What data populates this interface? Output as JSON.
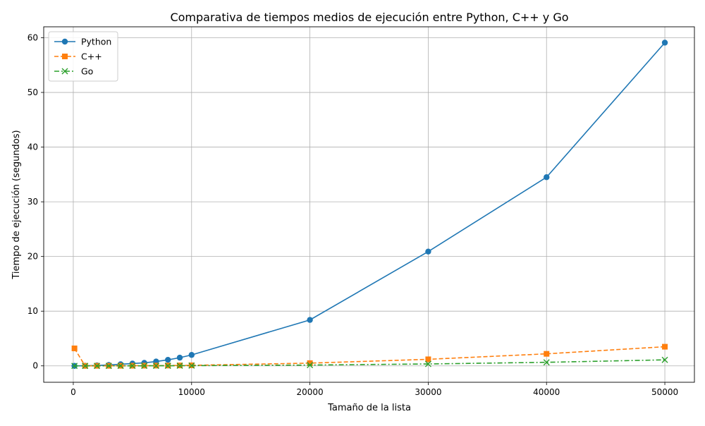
{
  "chart_data": {
    "type": "line",
    "title": "Comparativa de tiempos medios de ejecución entre Python, C++ y Go",
    "xlabel": "Tamaño de la lista",
    "ylabel": "Tiempo de ejecución (segundos)",
    "xlim": [
      -2500,
      52500
    ],
    "ylim": [
      -3,
      62
    ],
    "xticks": [
      0,
      10000,
      20000,
      30000,
      40000,
      50000
    ],
    "yticks": [
      0,
      10,
      20,
      30,
      40,
      50,
      60
    ],
    "grid": true,
    "legend_position": "top-left",
    "x": [
      100,
      1000,
      2000,
      3000,
      4000,
      5000,
      6000,
      7000,
      8000,
      9000,
      10000,
      20000,
      30000,
      40000,
      50000
    ],
    "series": [
      {
        "name": "Python",
        "color": "#1f77b4",
        "line_style": "solid",
        "marker": "circle",
        "values": [
          0.0,
          0.02,
          0.08,
          0.17,
          0.3,
          0.42,
          0.55,
          0.8,
          1.1,
          1.5,
          2.0,
          8.4,
          20.9,
          34.5,
          59.1
        ]
      },
      {
        "name": "C++",
        "color": "#ff7f0e",
        "line_style": "dashed",
        "marker": "square",
        "values": [
          3.2,
          0.0,
          0.01,
          0.01,
          0.02,
          0.03,
          0.04,
          0.05,
          0.06,
          0.08,
          0.1,
          0.5,
          1.2,
          2.2,
          3.5
        ]
      },
      {
        "name": "Go",
        "color": "#2ca02c",
        "line_style": "dashdot",
        "marker": "x",
        "values": [
          0.0,
          0.0,
          0.0,
          0.0,
          0.01,
          0.01,
          0.01,
          0.02,
          0.02,
          0.03,
          0.04,
          0.15,
          0.35,
          0.65,
          1.1
        ]
      }
    ]
  }
}
